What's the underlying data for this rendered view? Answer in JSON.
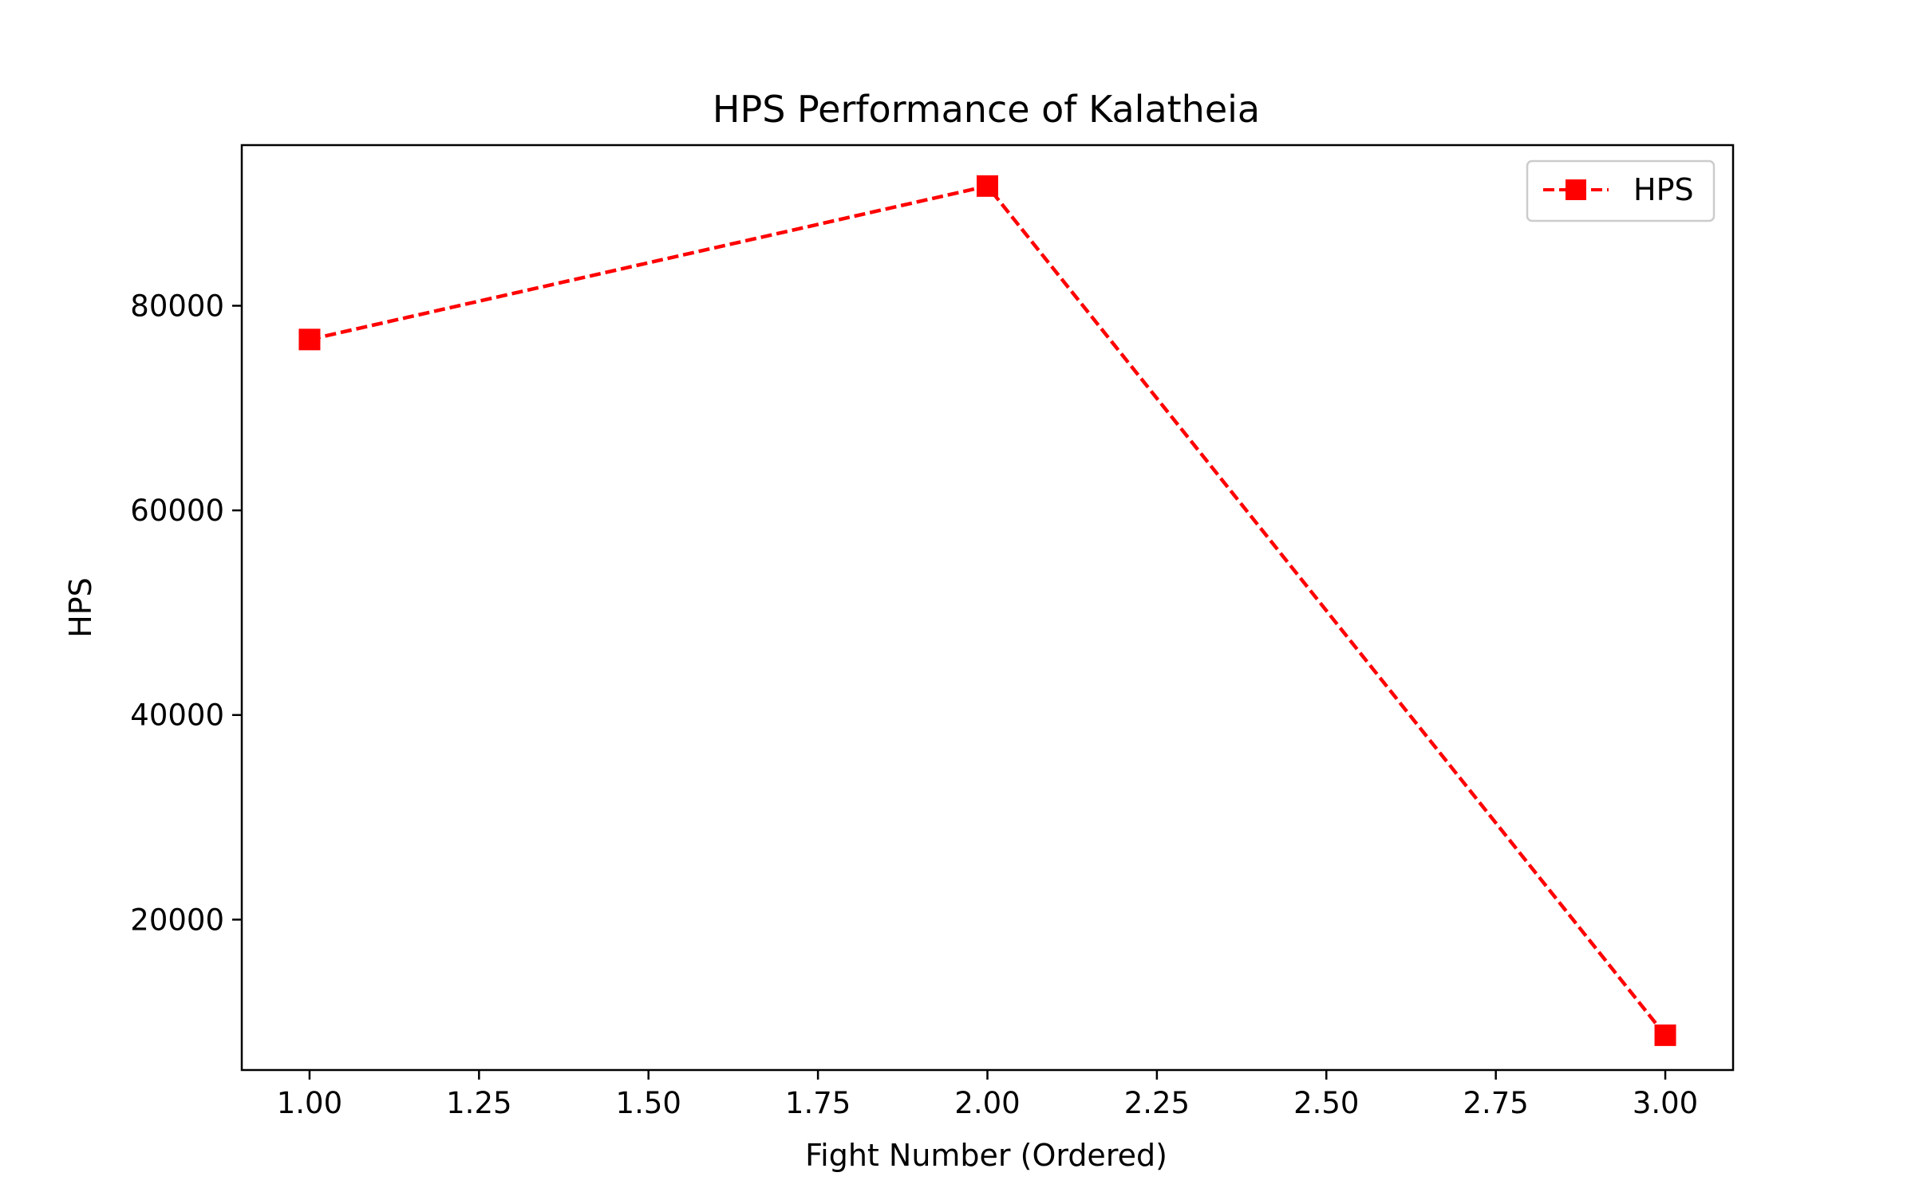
{
  "chart_data": {
    "type": "line",
    "title": "HPS Performance of Kalatheia",
    "xlabel": "Fight Number (Ordered)",
    "ylabel": "HPS",
    "x": [
      1,
      2,
      3
    ],
    "series": [
      {
        "name": "HPS",
        "values": [
          76700,
          91700,
          8700
        ],
        "color": "#ff0000",
        "line_style": "dashed",
        "marker": "square"
      }
    ],
    "xlim": [
      0.9,
      3.1
    ],
    "ylim": [
      5300,
      95700
    ],
    "xticks": [
      1.0,
      1.25,
      1.5,
      1.75,
      2.0,
      2.25,
      2.5,
      2.75,
      3.0
    ],
    "xtick_labels": [
      "1.00",
      "1.25",
      "1.50",
      "1.75",
      "2.00",
      "2.25",
      "2.50",
      "2.75",
      "3.00"
    ],
    "yticks": [
      20000,
      40000,
      60000,
      80000
    ],
    "ytick_labels": [
      "20000",
      "40000",
      "60000",
      "80000"
    ],
    "grid": false,
    "legend_position": "top-right"
  }
}
